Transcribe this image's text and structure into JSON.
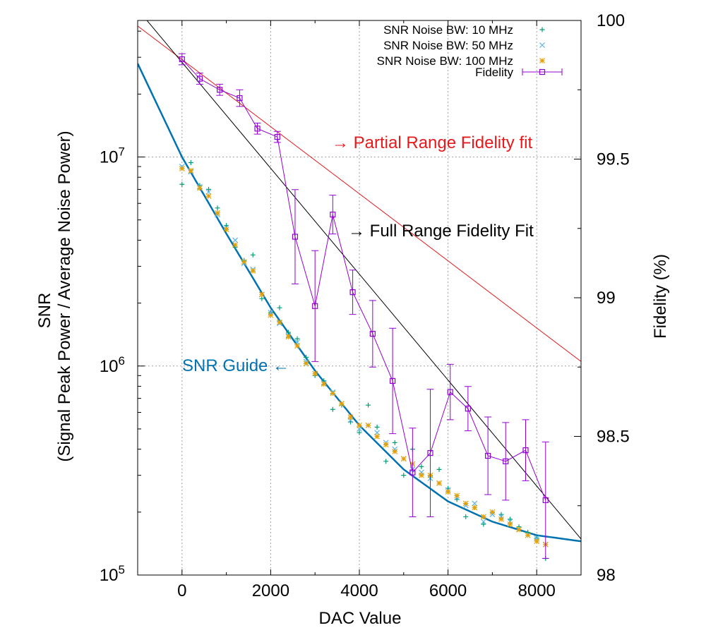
{
  "chart_data": {
    "type": "scatter",
    "xlabel": "DAC Value",
    "ylabel_left_line1": "SNR",
    "ylabel_left_line2": "(Signal Peak Power / Average Noise Power)",
    "ylabel_right": "Fidelity (%)",
    "xlim": [
      -1000,
      9000
    ],
    "ylim_left": [
      100000,
      45000000
    ],
    "y_left_scale": "log",
    "ylim_right": [
      98,
      100
    ],
    "grid": true,
    "legend_position": "top-right",
    "x_ticks": [
      {
        "value": 0,
        "label": "0"
      },
      {
        "value": 2000,
        "label": "2000"
      },
      {
        "value": 4000,
        "label": "4000"
      },
      {
        "value": 6000,
        "label": "6000"
      },
      {
        "value": 8000,
        "label": "8000"
      }
    ],
    "y_left_ticks": [
      {
        "value": 100000,
        "base": "10",
        "exp": "5"
      },
      {
        "value": 1000000,
        "base": "10",
        "exp": "6"
      },
      {
        "value": 10000000,
        "base": "10",
        "exp": "7"
      }
    ],
    "y_right_ticks": [
      {
        "value": 98,
        "label": "98"
      },
      {
        "value": 98.5,
        "label": "98.5"
      },
      {
        "value": 99,
        "label": "99"
      },
      {
        "value": 99.5,
        "label": "99.5"
      },
      {
        "value": 100,
        "label": "100"
      }
    ],
    "x_values": [
      0,
      200,
      400,
      600,
      800,
      1000,
      1200,
      1400,
      1600,
      1800,
      2000,
      2200,
      2400,
      2600,
      2800,
      3000,
      3200,
      3400,
      3600,
      3800,
      4000,
      4200,
      4400,
      4600,
      4800,
      5000,
      5200,
      5400,
      5600,
      5800,
      6000,
      6200,
      6400,
      6600,
      6800,
      7000,
      7200,
      7400,
      7600,
      7800,
      8000,
      8200
    ],
    "series": [
      {
        "name": "SNR Noise BW: 10 MHz",
        "marker": "plus",
        "color": "#009e73",
        "axis": "left",
        "values": [
          7400000,
          9400000,
          7300000,
          7000000,
          5700000,
          4700000,
          3700000,
          3200000,
          3400000,
          2100000,
          1800000,
          1900000,
          1450000,
          1350000,
          1100000,
          900000,
          850000,
          620000,
          650000,
          540000,
          480000,
          650000,
          510000,
          350000,
          430000,
          300000,
          400000,
          330000,
          300000,
          320000,
          260000,
          230000,
          190000,
          210000,
          175000,
          200000,
          195000,
          185000,
          170000,
          160000,
          150000,
          120000
        ]
      },
      {
        "name": "SNR Noise BW: 50 MHz",
        "marker": "cross",
        "color": "#56b4e9",
        "axis": "left",
        "values": [
          9000000,
          8500000,
          7200000,
          6800000,
          5300000,
          4600000,
          4000000,
          3100000,
          2900000,
          2200000,
          1800000,
          1600000,
          1400000,
          1300000,
          1050000,
          920000,
          830000,
          750000,
          660000,
          550000,
          500000,
          520000,
          480000,
          430000,
          400000,
          360000,
          320000,
          310000,
          290000,
          275000,
          255000,
          235000,
          215000,
          220000,
          180000,
          195000,
          190000,
          180000,
          165000,
          155000,
          150000,
          140000
        ]
      },
      {
        "name": "SNR Noise BW: 100 MHz",
        "marker": "star",
        "color": "#e69f00",
        "axis": "left",
        "values": [
          8800000,
          8600000,
          7100000,
          6500000,
          5400000,
          4500000,
          3800000,
          3150000,
          2850000,
          2200000,
          1750000,
          1620000,
          1380000,
          1250000,
          1030000,
          920000,
          820000,
          740000,
          660000,
          570000,
          520000,
          520000,
          460000,
          420000,
          390000,
          360000,
          340000,
          300000,
          300000,
          275000,
          250000,
          240000,
          220000,
          210000,
          190000,
          200000,
          185000,
          175000,
          165000,
          155000,
          145000,
          140000
        ]
      },
      {
        "name": "Fidelity",
        "marker": "square",
        "color": "#9400d3",
        "axis": "right",
        "errorbars": true,
        "x": [
          0,
          400,
          850,
          1300,
          1700,
          2150,
          2550,
          3000,
          3400,
          3850,
          4300,
          4750,
          5200,
          5600,
          6050,
          6450,
          6900,
          7300,
          7750,
          8200
        ],
        "values": [
          99.86,
          99.79,
          99.75,
          99.72,
          99.61,
          99.58,
          99.22,
          98.97,
          99.3,
          99.02,
          98.87,
          98.7,
          98.37,
          98.44,
          98.66,
          98.6,
          98.43,
          98.41,
          98.45,
          98.27
        ],
        "errors": [
          0.02,
          0.02,
          0.02,
          0.03,
          0.02,
          0.02,
          0.17,
          0.2,
          0.07,
          0.08,
          0.12,
          0.19,
          0.16,
          0.23,
          0.1,
          0.08,
          0.14,
          0.14,
          0.11,
          0.21
        ]
      }
    ],
    "fits": [
      {
        "label": "→ Partial Range Fidelity fit",
        "color": "#e41a1c",
        "axis": "right",
        "x": [
          -1000,
          9000
        ],
        "y": [
          99.98,
          98.77
        ]
      },
      {
        "label": "→ Full Range Fidelity Fit",
        "color": "#000000",
        "axis": "right",
        "x": [
          -1000,
          9000
        ],
        "y": [
          100.04,
          98.13
        ]
      },
      {
        "label": "SNR Guide ←",
        "color": "#0072b2",
        "axis": "left",
        "x": [
          -1000,
          0,
          1000,
          2000,
          3000,
          4000,
          5000,
          6000,
          7000,
          8000,
          9000
        ],
        "y": [
          28000000,
          10000000,
          4300000,
          1900000,
          950000,
          520000,
          320000,
          225000,
          180000,
          155000,
          145000
        ]
      }
    ]
  }
}
